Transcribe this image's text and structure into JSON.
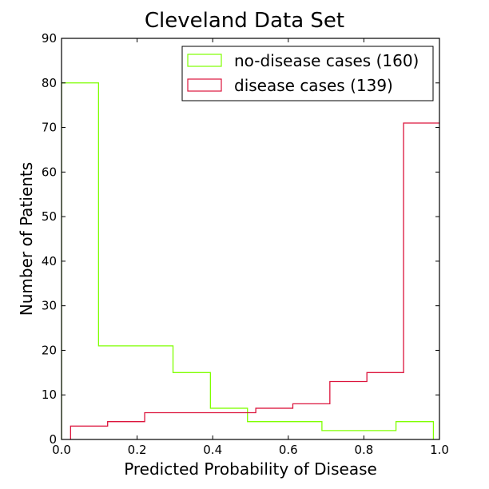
{
  "chart_data": {
    "type": "histogram",
    "title": "Cleveland Data Set",
    "xlabel": "Predicted Probability of Disease",
    "ylabel": "Number of Patients",
    "xlim": [
      0.0,
      1.0
    ],
    "ylim": [
      0,
      90
    ],
    "x_ticks": [
      "0.0",
      "0.2",
      "0.4",
      "0.6",
      "0.8",
      "1.0"
    ],
    "y_ticks": [
      "0",
      "10",
      "20",
      "30",
      "40",
      "50",
      "60",
      "70",
      "80",
      "90"
    ],
    "grid": false,
    "legend_position": "top-right",
    "series": [
      {
        "name": "no-disease cases (160)",
        "color": "#7fff00",
        "bin_edges": [
          0.0,
          0.098,
          0.197,
          0.295,
          0.394,
          0.492,
          0.59,
          0.689,
          0.787,
          0.885,
          0.984
        ],
        "counts": [
          80,
          21,
          21,
          15,
          7,
          4,
          4,
          2,
          2,
          4
        ]
      },
      {
        "name": "disease cases (139)",
        "color": "#dc143c",
        "bin_edges": [
          0.024,
          0.122,
          0.22,
          0.318,
          0.416,
          0.514,
          0.612,
          0.71,
          0.808,
          0.905,
          1.003
        ],
        "counts": [
          3,
          4,
          6,
          6,
          6,
          7,
          8,
          13,
          15,
          71
        ]
      }
    ]
  }
}
